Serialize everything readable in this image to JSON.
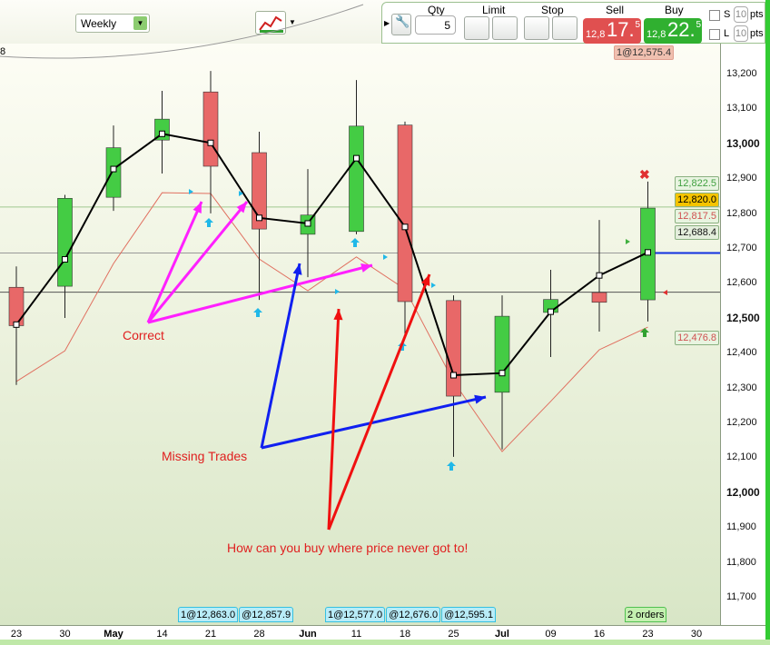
{
  "toolbar": {
    "timeframe": "Weekly",
    "qty_label": "Qty",
    "qty_value": "5",
    "limit_label": "Limit",
    "stop_label": "Stop",
    "sell_label": "Sell",
    "buy_label": "Buy",
    "sell_small": "12,8",
    "sell_big": "17.",
    "sell_sup": "5",
    "buy_small": "12,8",
    "buy_big": "22.",
    "buy_sup": "5",
    "s_label": "S",
    "l_label": "L",
    "s_pts": "10",
    "l_pts": "10",
    "pts_label": "pts",
    "sell_color": "#e05050",
    "buy_color": "#30b030"
  },
  "corner_text": "8",
  "top_tag": "1@12,575.4",
  "price_axis": {
    "ticks": [
      "13,200",
      "13,100",
      "13,000",
      "12,900",
      "12,800",
      "12,700",
      "12,600",
      "12,500",
      "12,400",
      "12,300",
      "12,200",
      "12,100",
      "12,000",
      "11,900",
      "11,800",
      "11,700"
    ],
    "tags": {
      "green_faded": "12,822.5",
      "current": "12,820.0",
      "red_faded": "12,817.5",
      "blue_line": "12,688.4",
      "ma": "12,476.8"
    }
  },
  "time_axis": [
    "23",
    "30",
    "May",
    "14",
    "21",
    "28",
    "Jun",
    "11",
    "18",
    "25",
    "Jul",
    "09",
    "16",
    "23",
    "30"
  ],
  "orders": [
    "1@12,863.0",
    "@12,857.9",
    "1@12,577.0",
    "@12,676.0",
    "@12,595.1",
    "2 orders"
  ],
  "annotations": {
    "correct": "Correct",
    "missing": "Missing Trades",
    "how": "How can you buy where price never got to!"
  },
  "chart_data": {
    "type": "candlestick",
    "ylim": [
      11650,
      13250
    ],
    "candles": [
      {
        "week": "23",
        "o": 12590,
        "h": 12650,
        "l": 12310,
        "c": 12480
      },
      {
        "week": "30",
        "o": 12593,
        "h": 12855,
        "l": 12502,
        "c": 12845
      },
      {
        "week": "May",
        "o": 12848,
        "h": 13054,
        "l": 12809,
        "c": 12990
      },
      {
        "week": "14",
        "o": 13012,
        "h": 13153,
        "l": 12916,
        "c": 13072
      },
      {
        "week": "21",
        "o": 13150,
        "h": 13210,
        "l": 12802,
        "c": 12937
      },
      {
        "week": "28",
        "o": 12976,
        "h": 13036,
        "l": 12554,
        "c": 12757
      },
      {
        "week": "Jun",
        "o": 12742,
        "h": 12929,
        "l": 12619,
        "c": 12797
      },
      {
        "week": "11",
        "o": 12750,
        "h": 13184,
        "l": 12742,
        "c": 13052
      },
      {
        "week": "18",
        "o": 13055,
        "h": 13065,
        "l": 12450,
        "c": 12549
      },
      {
        "week": "25",
        "o": 12552,
        "h": 12567,
        "l": 12104,
        "c": 12278
      },
      {
        "week": "Jul",
        "o": 12289,
        "h": 12567,
        "l": 12125,
        "c": 12507
      },
      {
        "week": "09",
        "o": 12518,
        "h": 12640,
        "l": 12390,
        "c": 12555
      },
      {
        "week": "16",
        "o": 12575,
        "h": 12783,
        "l": 12463,
        "c": 12547
      },
      {
        "week": "23",
        "o": 12554,
        "h": 12893,
        "l": 12492,
        "c": 12817
      }
    ],
    "midline": [
      12483,
      12670,
      12929,
      13030,
      13004,
      12789,
      12773,
      12960,
      12763,
      12338,
      12344,
      12520,
      12624,
      12690
    ],
    "ma": [
      12320,
      12408,
      12658,
      12861,
      12859,
      12671,
      12580,
      12677,
      12585,
      12320,
      12119,
      12263,
      12411,
      12476
    ],
    "hlines": [
      12820,
      12688.4,
      12576
    ],
    "colors": {
      "up": "#44cc44",
      "down": "#e86868",
      "ma": "#e07060",
      "mid": "#000000"
    }
  }
}
